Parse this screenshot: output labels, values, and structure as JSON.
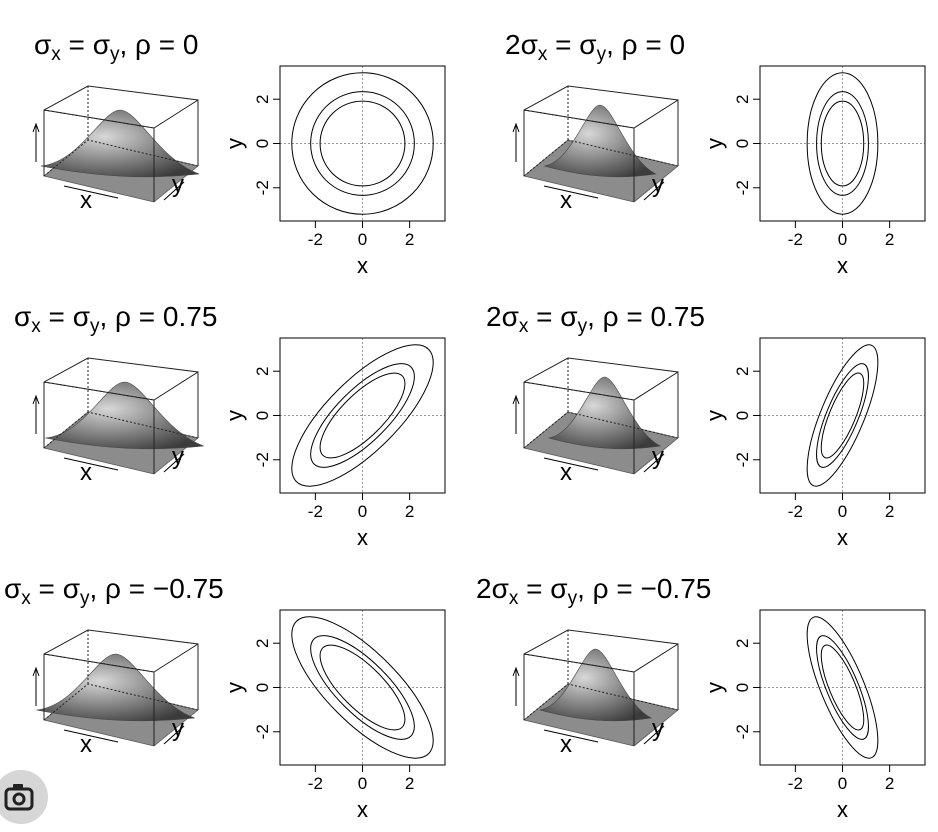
{
  "chart_data": [
    {
      "type": "contour",
      "title_parts": {
        "coef": "",
        "sx": "σ",
        "sub_x": "x",
        "eq": " = ",
        "sy": "σ",
        "sub_y": "y",
        "sep": ",  ",
        "rho": "ρ",
        "eq2": " = ",
        "value": "0"
      },
      "sx_ratio": 1,
      "rho": 0,
      "surface_axis_labels": {
        "x": "x",
        "y": "y"
      },
      "xlabel": "x",
      "ylabel": "y",
      "xlim": [
        -3.5,
        3.5
      ],
      "ylim": [
        -3.5,
        3.5
      ],
      "xticks": [
        {
          "value": -2,
          "label": "-2"
        },
        {
          "value": 0,
          "label": "0"
        },
        {
          "value": 2,
          "label": "2"
        }
      ],
      "yticks": [
        {
          "value": -2,
          "label": "-2"
        },
        {
          "value": 0,
          "label": "0"
        },
        {
          "value": 2,
          "label": "2"
        }
      ],
      "contour_radii": [
        1.8,
        2.2,
        3.0
      ],
      "reference_lines": {
        "x": 0,
        "y": 0
      }
    },
    {
      "type": "contour",
      "title_parts": {
        "coef": "2",
        "sx": "σ",
        "sub_x": "x",
        "eq": " = ",
        "sy": "σ",
        "sub_y": "y",
        "sep": ",  ",
        "rho": "ρ",
        "eq2": " = ",
        "value": "0"
      },
      "sx_ratio": 0.5,
      "rho": 0,
      "surface_axis_labels": {
        "x": "x",
        "y": "y"
      },
      "xlabel": "x",
      "ylabel": "y",
      "xlim": [
        -3.5,
        3.5
      ],
      "ylim": [
        -3.5,
        3.5
      ],
      "xticks": [
        {
          "value": -2,
          "label": "-2"
        },
        {
          "value": 0,
          "label": "0"
        },
        {
          "value": 2,
          "label": "2"
        }
      ],
      "yticks": [
        {
          "value": -2,
          "label": "-2"
        },
        {
          "value": 0,
          "label": "0"
        },
        {
          "value": 2,
          "label": "2"
        }
      ],
      "contour_radii": [
        1.8,
        2.2,
        3.0
      ],
      "reference_lines": {
        "x": 0,
        "y": 0
      }
    },
    {
      "type": "contour",
      "title_parts": {
        "coef": "",
        "sx": "σ",
        "sub_x": "x",
        "eq": " = ",
        "sy": "σ",
        "sub_y": "y",
        "sep": ",  ",
        "rho": "ρ",
        "eq2": " = ",
        "value": "0.75"
      },
      "sx_ratio": 1,
      "rho": 0.75,
      "surface_axis_labels": {
        "x": "x",
        "y": "y"
      },
      "xlabel": "x",
      "ylabel": "y",
      "xlim": [
        -3.5,
        3.5
      ],
      "ylim": [
        -3.5,
        3.5
      ],
      "xticks": [
        {
          "value": -2,
          "label": "-2"
        },
        {
          "value": 0,
          "label": "0"
        },
        {
          "value": 2,
          "label": "2"
        }
      ],
      "yticks": [
        {
          "value": -2,
          "label": "-2"
        },
        {
          "value": 0,
          "label": "0"
        },
        {
          "value": 2,
          "label": "2"
        }
      ],
      "contour_radii": [
        1.8,
        2.2,
        3.0
      ],
      "reference_lines": {
        "x": 0,
        "y": 0
      }
    },
    {
      "type": "contour",
      "title_parts": {
        "coef": "2",
        "sx": "σ",
        "sub_x": "x",
        "eq": " = ",
        "sy": "σ",
        "sub_y": "y",
        "sep": ",  ",
        "rho": "ρ",
        "eq2": " = ",
        "value": "0.75"
      },
      "sx_ratio": 0.5,
      "rho": 0.75,
      "surface_axis_labels": {
        "x": "x",
        "y": "y"
      },
      "xlabel": "x",
      "ylabel": "y",
      "xlim": [
        -3.5,
        3.5
      ],
      "ylim": [
        -3.5,
        3.5
      ],
      "xticks": [
        {
          "value": -2,
          "label": "-2"
        },
        {
          "value": 0,
          "label": "0"
        },
        {
          "value": 2,
          "label": "2"
        }
      ],
      "yticks": [
        {
          "value": -2,
          "label": "-2"
        },
        {
          "value": 0,
          "label": "0"
        },
        {
          "value": 2,
          "label": "2"
        }
      ],
      "contour_radii": [
        1.8,
        2.2,
        3.0
      ],
      "reference_lines": {
        "x": 0,
        "y": 0
      }
    },
    {
      "type": "contour",
      "title_parts": {
        "coef": "",
        "sx": "σ",
        "sub_x": "x",
        "eq": " = ",
        "sy": "σ",
        "sub_y": "y",
        "sep": ",  ",
        "rho": "ρ",
        "eq2": " = ",
        "value": "−0.75"
      },
      "sx_ratio": 1,
      "rho": -0.75,
      "surface_axis_labels": {
        "x": "x",
        "y": "y"
      },
      "xlabel": "x",
      "ylabel": "y",
      "xlim": [
        -3.5,
        3.5
      ],
      "ylim": [
        -3.5,
        3.5
      ],
      "xticks": [
        {
          "value": -2,
          "label": "-2"
        },
        {
          "value": 0,
          "label": "0"
        },
        {
          "value": 2,
          "label": "2"
        }
      ],
      "yticks": [
        {
          "value": -2,
          "label": "-2"
        },
        {
          "value": 0,
          "label": "0"
        },
        {
          "value": 2,
          "label": "2"
        }
      ],
      "contour_radii": [
        1.8,
        2.2,
        3.0
      ],
      "reference_lines": {
        "x": 0,
        "y": 0
      }
    },
    {
      "type": "contour",
      "title_parts": {
        "coef": "2",
        "sx": "σ",
        "sub_x": "x",
        "eq": " = ",
        "sy": "σ",
        "sub_y": "y",
        "sep": ",  ",
        "rho": "ρ",
        "eq2": " = ",
        "value": "−0.75"
      },
      "sx_ratio": 0.5,
      "rho": -0.75,
      "surface_axis_labels": {
        "x": "x",
        "y": "y"
      },
      "xlabel": "x",
      "ylabel": "y",
      "xlim": [
        -3.5,
        3.5
      ],
      "ylim": [
        -3.5,
        3.5
      ],
      "xticks": [
        {
          "value": -2,
          "label": "-2"
        },
        {
          "value": 0,
          "label": "0"
        },
        {
          "value": 2,
          "label": "2"
        }
      ],
      "yticks": [
        {
          "value": -2,
          "label": "-2"
        },
        {
          "value": 0,
          "label": "0"
        },
        {
          "value": 2,
          "label": "2"
        }
      ],
      "contour_radii": [
        1.8,
        2.2,
        3.0
      ],
      "reference_lines": {
        "x": 0,
        "y": 0
      }
    }
  ],
  "overlay": {
    "icon": "lens-camera-icon"
  }
}
